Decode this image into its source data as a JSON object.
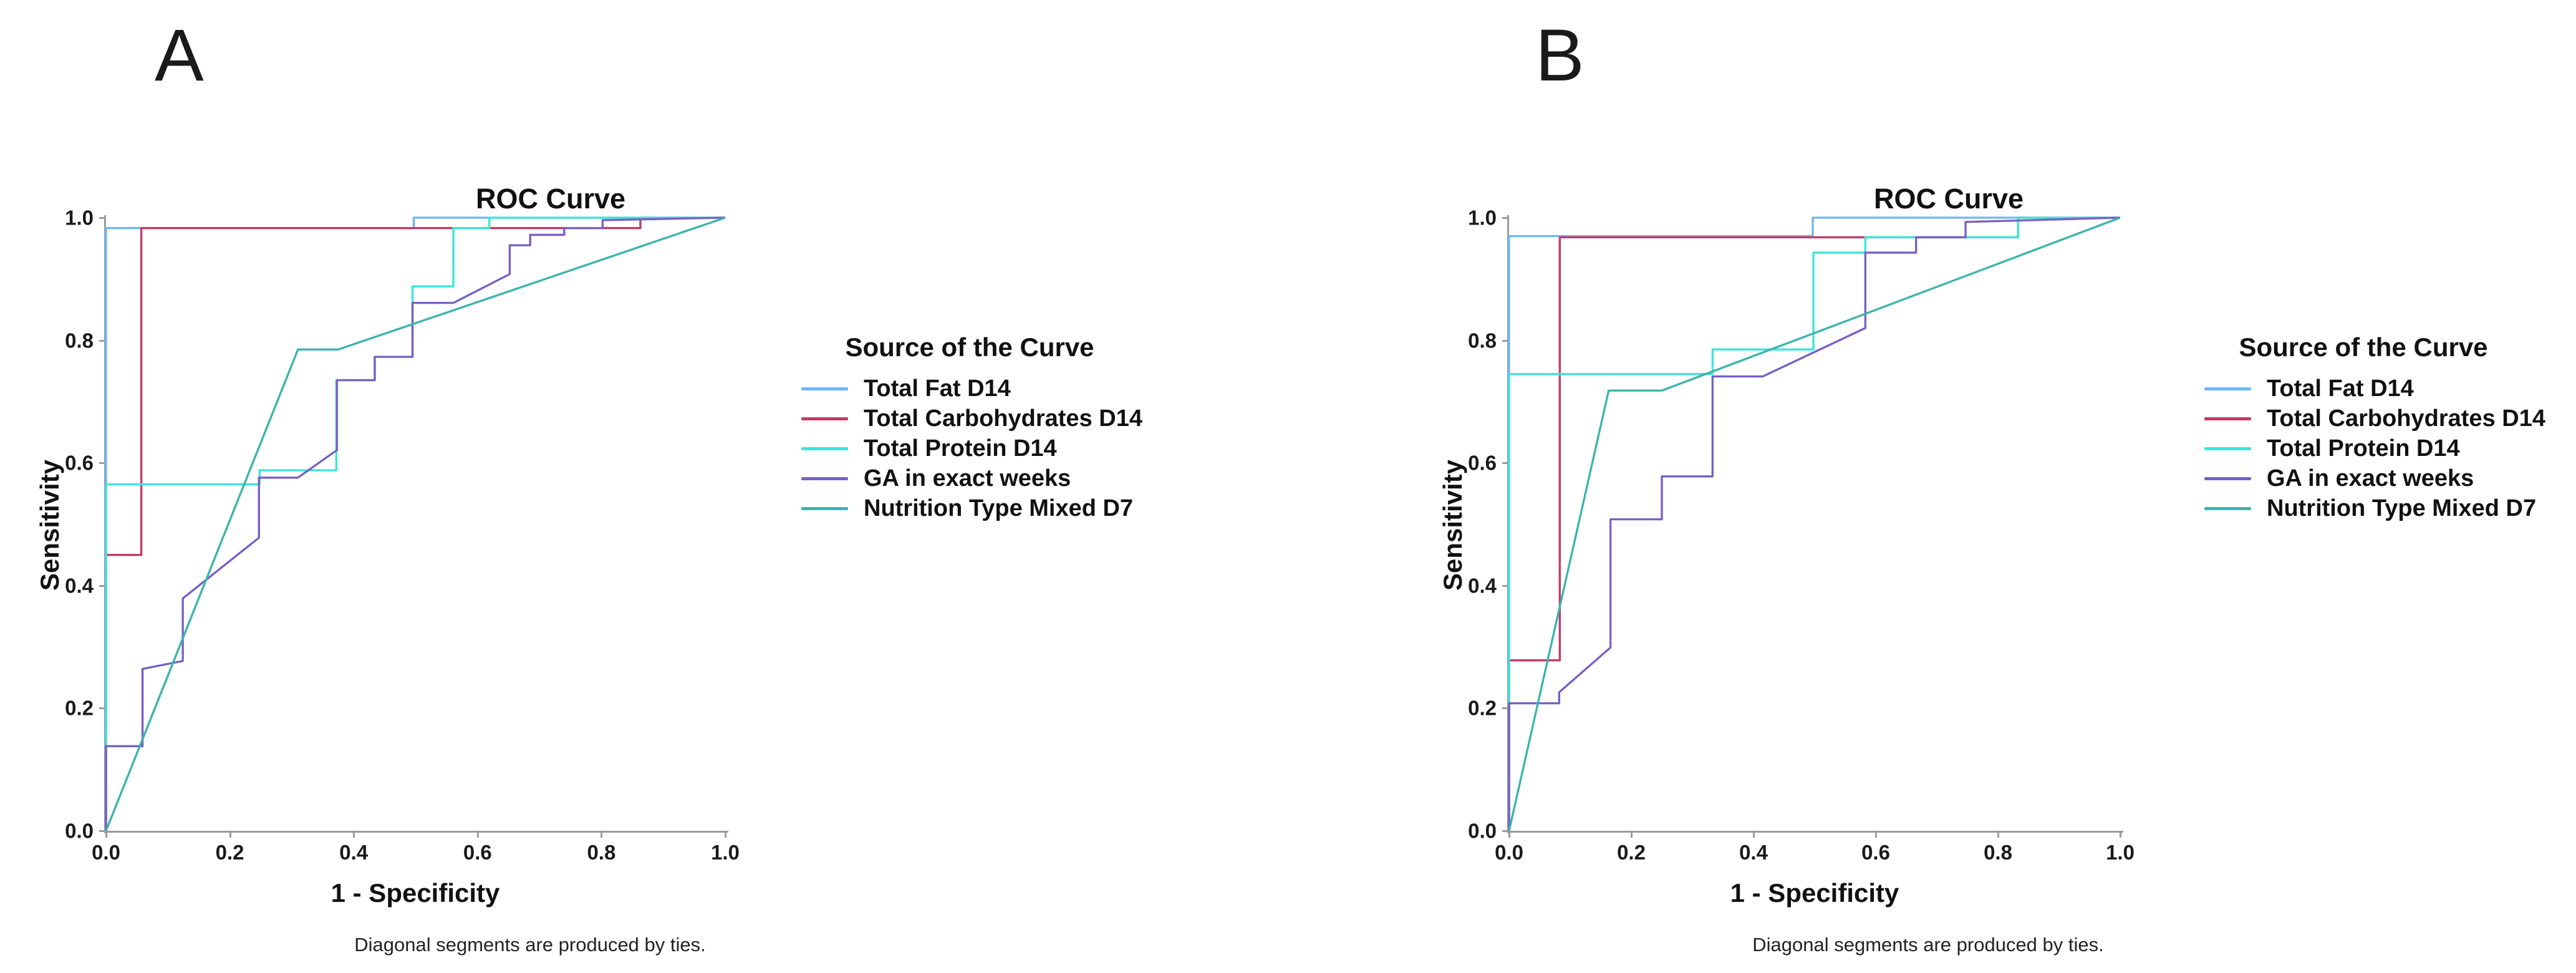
{
  "chart_data": [
    {
      "panel_label": "A",
      "type": "line",
      "title": "ROC Curve",
      "xlabel": "1 - Specificity",
      "ylabel": "Sensitivity",
      "footnote": "Diagonal segments are produced by ties.",
      "legend_title": "Source of the Curve",
      "legend_position": "right",
      "grid": false,
      "xlim": [
        0,
        1
      ],
      "ylim": [
        0,
        1
      ],
      "x_ticks": [
        "0.0",
        "0.2",
        "0.4",
        "0.6",
        "0.8",
        "1.0"
      ],
      "y_ticks": [
        "0.0",
        "0.2",
        "0.4",
        "0.6",
        "0.8",
        "1.0"
      ],
      "series": [
        {
          "name": "Total Fat D14",
          "color": "#6cb7f5",
          "points": [
            [
              0,
              0
            ],
            [
              0,
              0.983
            ],
            [
              0.497,
              0.983
            ],
            [
              0.497,
              1
            ],
            [
              1,
              1
            ]
          ]
        },
        {
          "name": "Total Carbohydrates D14",
          "color": "#c13a67",
          "points": [
            [
              0,
              0
            ],
            [
              0,
              0.45
            ],
            [
              0.057,
              0.45
            ],
            [
              0.057,
              0.983
            ],
            [
              0.863,
              0.983
            ],
            [
              0.863,
              1
            ],
            [
              1,
              1
            ]
          ]
        },
        {
          "name": "Total Protein D14",
          "color": "#3be5da",
          "points": [
            [
              0,
              0
            ],
            [
              0,
              0.565
            ],
            [
              0.248,
              0.565
            ],
            [
              0.248,
              0.588
            ],
            [
              0.372,
              0.588
            ],
            [
              0.372,
              0.735
            ],
            [
              0.434,
              0.735
            ],
            [
              0.434,
              0.773
            ],
            [
              0.495,
              0.773
            ],
            [
              0.495,
              0.888
            ],
            [
              0.561,
              0.888
            ],
            [
              0.561,
              0.983
            ],
            [
              0.619,
              0.983
            ],
            [
              0.619,
              1
            ],
            [
              1,
              1
            ]
          ]
        },
        {
          "name": "GA in exact weeks",
          "color": "#7760c5",
          "points": [
            [
              0,
              0
            ],
            [
              0,
              0.138
            ],
            [
              0.059,
              0.138
            ],
            [
              0.059,
              0.264
            ],
            [
              0.124,
              0.277
            ],
            [
              0.124,
              0.379
            ],
            [
              0.247,
              0.478
            ],
            [
              0.247,
              0.576
            ],
            [
              0.31,
              0.576
            ],
            [
              0.373,
              0.621
            ],
            [
              0.373,
              0.735
            ],
            [
              0.434,
              0.735
            ],
            [
              0.434,
              0.773
            ],
            [
              0.495,
              0.773
            ],
            [
              0.495,
              0.861
            ],
            [
              0.561,
              0.861
            ],
            [
              0.652,
              0.908
            ],
            [
              0.652,
              0.955
            ],
            [
              0.685,
              0.955
            ],
            [
              0.685,
              0.972
            ],
            [
              0.74,
              0.972
            ],
            [
              0.74,
              0.983
            ],
            [
              0.802,
              0.983
            ],
            [
              0.802,
              0.996
            ],
            [
              1,
              1
            ]
          ]
        },
        {
          "name": "Nutrition Type Mixed D7",
          "color": "#3bb4ac",
          "points": [
            [
              0,
              0
            ],
            [
              0.31,
              0.785
            ],
            [
              0.375,
              0.785
            ],
            [
              1,
              1
            ]
          ]
        }
      ]
    },
    {
      "panel_label": "B",
      "type": "line",
      "title": "ROC Curve",
      "xlabel": "1 - Specificity",
      "ylabel": "Sensitivity",
      "footnote": "Diagonal segments are produced by ties.",
      "legend_title": "Source of the Curve",
      "legend_position": "right",
      "grid": false,
      "xlim": [
        0,
        1
      ],
      "ylim": [
        0,
        1
      ],
      "x_ticks": [
        "0.0",
        "0.2",
        "0.4",
        "0.6",
        "0.8",
        "1.0"
      ],
      "y_ticks": [
        "0.0",
        "0.2",
        "0.4",
        "0.6",
        "0.8",
        "1.0"
      ],
      "series": [
        {
          "name": "Total Fat D14",
          "color": "#6cb7f5",
          "points": [
            [
              0,
              0
            ],
            [
              0,
              0.97
            ],
            [
              0.497,
              0.97
            ],
            [
              0.497,
              1
            ],
            [
              1,
              1
            ]
          ]
        },
        {
          "name": "Total Carbohydrates D14",
          "color": "#c13a67",
          "points": [
            [
              0,
              0
            ],
            [
              0,
              0.278
            ],
            [
              0.083,
              0.278
            ],
            [
              0.083,
              0.968
            ],
            [
              0.833,
              0.968
            ],
            [
              0.833,
              1
            ],
            [
              1,
              1
            ]
          ]
        },
        {
          "name": "Total Protein D14",
          "color": "#3be5da",
          "points": [
            [
              0,
              0
            ],
            [
              0,
              0.745
            ],
            [
              0.333,
              0.745
            ],
            [
              0.333,
              0.785
            ],
            [
              0.498,
              0.785
            ],
            [
              0.498,
              0.943
            ],
            [
              0.583,
              0.943
            ],
            [
              0.583,
              0.968
            ],
            [
              0.833,
              0.968
            ],
            [
              0.833,
              1
            ],
            [
              1,
              1
            ]
          ]
        },
        {
          "name": "GA in exact weeks",
          "color": "#7760c5",
          "points": [
            [
              0,
              0
            ],
            [
              0,
              0.208
            ],
            [
              0.082,
              0.208
            ],
            [
              0.082,
              0.226
            ],
            [
              0.166,
              0.299
            ],
            [
              0.166,
              0.508
            ],
            [
              0.25,
              0.508
            ],
            [
              0.25,
              0.578
            ],
            [
              0.333,
              0.578
            ],
            [
              0.333,
              0.741
            ],
            [
              0.415,
              0.741
            ],
            [
              0.583,
              0.82
            ],
            [
              0.583,
              0.943
            ],
            [
              0.666,
              0.943
            ],
            [
              0.666,
              0.968
            ],
            [
              0.747,
              0.968
            ],
            [
              0.747,
              0.993
            ],
            [
              1,
              1
            ]
          ]
        },
        {
          "name": "Nutrition Type Mixed D7",
          "color": "#3bb4ac",
          "points": [
            [
              0,
              0
            ],
            [
              0.163,
              0.718
            ],
            [
              0.25,
              0.718
            ],
            [
              1,
              1
            ]
          ]
        }
      ]
    }
  ]
}
